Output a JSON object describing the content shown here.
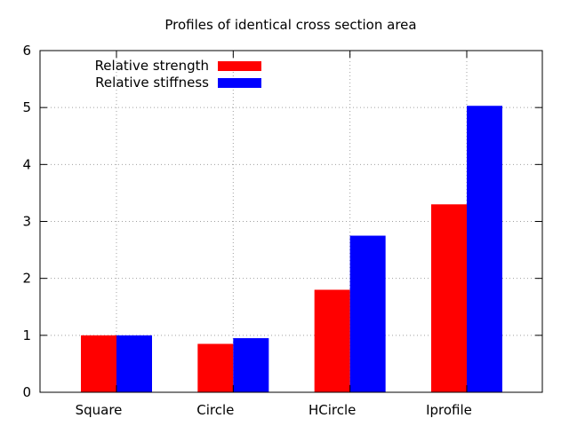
{
  "chart_data": {
    "type": "bar",
    "title": "Profiles of identical cross section area",
    "xlabel": "",
    "ylabel": "",
    "categories": [
      "Square",
      "Circle",
      "HCircle",
      "Iprofile"
    ],
    "series": [
      {
        "name": "Relative strength",
        "color": "#ff0000",
        "values": [
          1.0,
          0.85,
          1.8,
          3.3
        ]
      },
      {
        "name": "Relative stiffness",
        "color": "#0000ff",
        "values": [
          1.0,
          0.95,
          2.75,
          5.03
        ]
      }
    ],
    "ylim": [
      0,
      6
    ],
    "yticks": [
      0,
      1,
      2,
      3,
      4,
      5,
      6
    ],
    "grid": true,
    "legend_position": "top-left"
  }
}
